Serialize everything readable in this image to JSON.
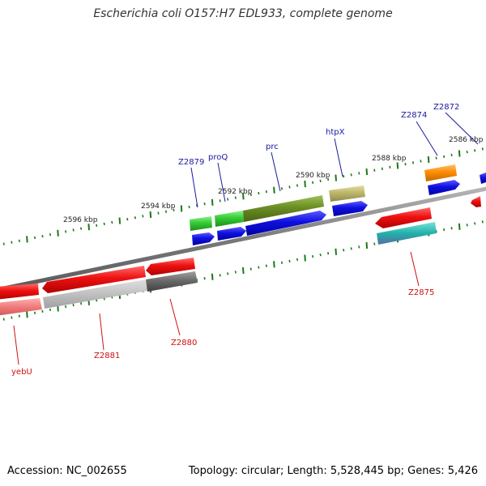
{
  "title": "Escherichia coli O157:H7 EDL933, complete genome",
  "footer": {
    "accession": "Accession: NC_002655",
    "summary": "Topology: circular; Length: 5,528,445 bp; Genes: 5,426"
  },
  "ticks": [
    {
      "label": "2596 kbp"
    },
    {
      "label": "2594 kbp"
    },
    {
      "label": "2592 kbp"
    },
    {
      "label": "2590 kbp"
    },
    {
      "label": "2588 kbp"
    },
    {
      "label": "2586 kbp"
    }
  ],
  "gene_labels": [
    {
      "name": "Z2872",
      "color": "#1a1aa0"
    },
    {
      "name": "Z2874",
      "color": "#1a1aa0"
    },
    {
      "name": "htpX",
      "color": "#1a1aa0"
    },
    {
      "name": "prc",
      "color": "#1a1aa0"
    },
    {
      "name": "proQ",
      "color": "#1a1aa0"
    },
    {
      "name": "Z2879",
      "color": "#1a1aa0"
    },
    {
      "name": "Z2875",
      "color": "#cc1111"
    },
    {
      "name": "Z2880",
      "color": "#cc1111"
    },
    {
      "name": "Z2881",
      "color": "#cc1111"
    },
    {
      "name": "yebU",
      "color": "#cc1111"
    }
  ],
  "colors": {
    "backbone": "#8a8a8a",
    "tick": "#1a7a1a",
    "cds_forward": "#1010e0",
    "cds_reverse": "#ee1111",
    "green": "#33cc33",
    "olive": "#6b8e23",
    "khaki": "#bdb76b",
    "orange": "#ff8c00",
    "teal": "#20b2aa",
    "gray": "#666666"
  }
}
